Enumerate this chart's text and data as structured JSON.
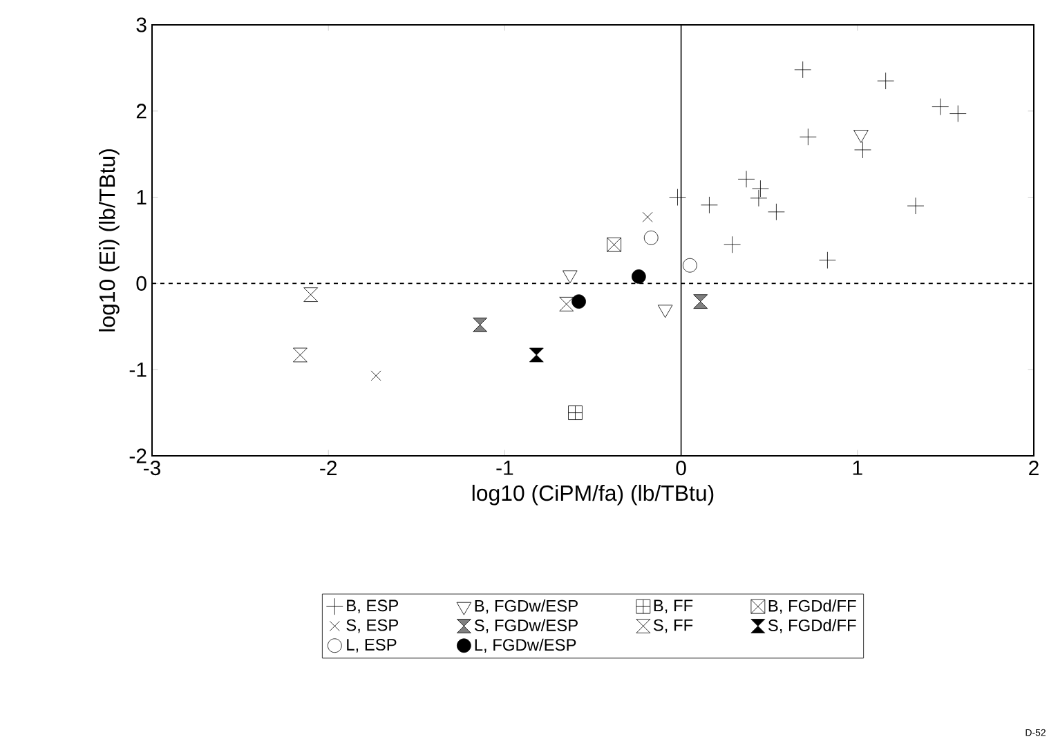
{
  "chart_data": {
    "type": "scatter",
    "xlabel": "log10 (CiPM/fa) (lb/TBtu)",
    "ylabel": "log10 (Ei) (lb/TBtu)",
    "xlim": [
      -3,
      2
    ],
    "ylim": [
      -2,
      3
    ],
    "xticks": [
      -3,
      -2,
      -1,
      0,
      1,
      2
    ],
    "yticks": [
      -2,
      -1,
      0,
      1,
      2,
      3
    ],
    "grid": false,
    "legend": "bottom",
    "ref_lines": [
      {
        "axis": "x",
        "value": 0,
        "line_style": "solid"
      },
      {
        "axis": "y",
        "value": 0,
        "line_style": "dashed"
      }
    ],
    "annotations": [
      "D-52"
    ],
    "series": [
      {
        "name": "B, ESP",
        "color": "#000000",
        "marker": "cross",
        "x": [
          0.69,
          1.16,
          1.47,
          1.57,
          0.72,
          1.03,
          0.37,
          0.45,
          0.44,
          0.54,
          0.16,
          -0.02,
          0.29,
          0.83,
          1.33
        ],
        "values": [
          2.48,
          2.35,
          2.05,
          1.97,
          1.7,
          1.55,
          1.21,
          1.1,
          0.99,
          0.83,
          0.91,
          1.0,
          0.45,
          0.27,
          0.9
        ]
      },
      {
        "name": "B, FGDw/ESP",
        "color": "#000000",
        "marker": "triangle",
        "x": [
          1.02,
          -0.63,
          -0.09
        ],
        "values": [
          1.73,
          0.1,
          -0.3
        ]
      },
      {
        "name": "B, FF",
        "color": "#000000",
        "marker": "cross",
        "x": [
          -0.6
        ],
        "values": [
          -1.5
        ]
      },
      {
        "name": "B, FGDd/FF",
        "color": "#000000",
        "marker": "cross",
        "x": [
          -0.38
        ],
        "values": [
          0.45
        ]
      },
      {
        "name": "S, ESP",
        "color": "#000000",
        "marker": "cross",
        "x": [
          -1.73,
          -0.19
        ],
        "values": [
          -1.07,
          0.77
        ]
      },
      {
        "name": "S, FGDw/ESP",
        "color": "#000000",
        "marker": "diamond",
        "x": [
          -1.14,
          0.11
        ],
        "values": [
          -0.48,
          -0.21
        ]
      },
      {
        "name": "S, FF",
        "color": "#000000",
        "marker": "diamond",
        "x": [
          -2.1,
          -2.16,
          -0.65
        ],
        "values": [
          -0.13,
          -0.83,
          -0.24
        ]
      },
      {
        "name": "S, FGDd/FF",
        "color": "#000000",
        "marker": "diamond",
        "x": [
          -0.82
        ],
        "values": [
          -0.83
        ]
      },
      {
        "name": "L, ESP",
        "color": "#000000",
        "marker": "circle",
        "x": [
          -0.17,
          0.05
        ],
        "values": [
          0.53,
          0.21
        ]
      },
      {
        "name": "L, FGDw/ESP",
        "color": "#000000",
        "marker": "circle",
        "x": [
          -0.58,
          -0.24
        ],
        "values": [
          -0.21,
          0.08
        ]
      }
    ]
  }
}
